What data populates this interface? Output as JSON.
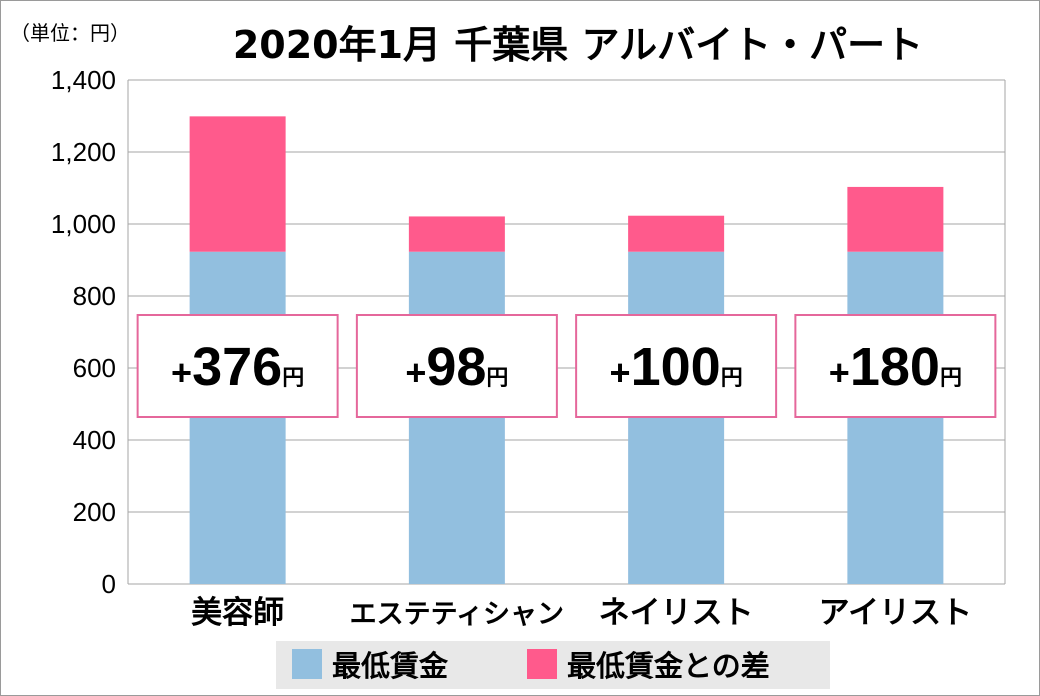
{
  "chart_data": {
    "type": "bar",
    "stacked": true,
    "title": "2020年1月 千葉県 アルバイト・パート",
    "unit_label": "（単位：円）",
    "categories": [
      "美容師",
      "エステティシャン",
      "ネイリスト",
      "アイリスト"
    ],
    "series": [
      {
        "name": "最低賃金",
        "values": [
          923,
          923,
          923,
          923
        ],
        "color": "#92bfdf"
      },
      {
        "name": "最低賃金との差",
        "values": [
          376,
          98,
          100,
          180
        ],
        "color": "#ff5a8c"
      }
    ],
    "difference_labels": [
      {
        "sign": "+",
        "number": "376",
        "unit": "円"
      },
      {
        "sign": "+",
        "number": "98",
        "unit": "円"
      },
      {
        "sign": "+",
        "number": "100",
        "unit": "円"
      },
      {
        "sign": "+",
        "number": "180",
        "unit": "円"
      }
    ],
    "ylim": [
      0,
      1400
    ],
    "yticks": [
      0,
      200,
      400,
      600,
      800,
      1000,
      1200,
      1400
    ],
    "ytick_labels": [
      "0",
      "200",
      "400",
      "600",
      "800",
      "1,000",
      "1,200",
      "1,400"
    ],
    "grid": true,
    "legend_position": "bottom",
    "xlabel": "",
    "ylabel": ""
  }
}
